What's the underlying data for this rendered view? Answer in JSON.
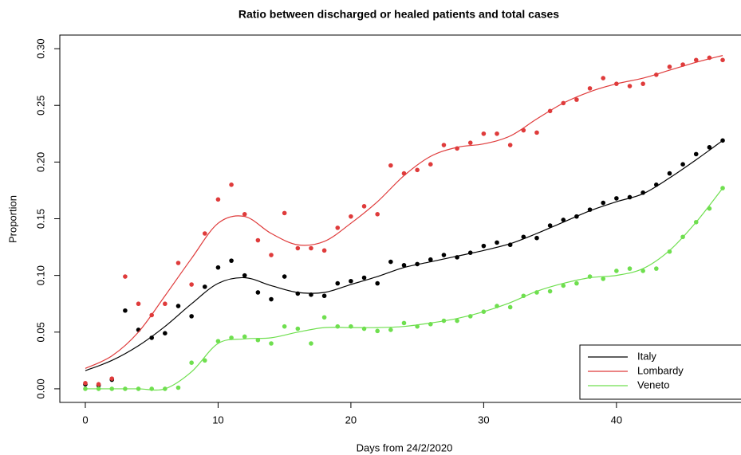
{
  "chart_data": {
    "type": "scatter",
    "title": "Ratio between discharged or healed patients and total cases",
    "x_label": "Days from 24/2/2020",
    "y_label": "Proportion",
    "x": [
      0,
      1,
      2,
      3,
      4,
      5,
      6,
      7,
      8,
      9,
      10,
      11,
      12,
      13,
      14,
      15,
      16,
      17,
      18,
      19,
      20,
      21,
      22,
      23,
      24,
      25,
      26,
      27,
      28,
      29,
      30,
      31,
      32,
      33,
      34,
      35,
      36,
      37,
      38,
      39,
      40,
      41,
      42,
      43,
      44,
      45,
      46,
      47,
      48
    ],
    "fit_x": [
      0,
      2,
      4,
      6,
      8,
      10,
      12,
      14,
      16,
      18,
      20,
      22,
      24,
      26,
      28,
      30,
      32,
      34,
      36,
      38,
      40,
      42,
      44,
      46,
      48
    ],
    "series": [
      {
        "name": "Italy",
        "color": "#000000",
        "values": [
          0.004,
          0.003,
          0.008,
          0.069,
          0.052,
          0.045,
          0.049,
          0.073,
          0.064,
          0.09,
          0.107,
          0.113,
          0.1,
          0.085,
          0.079,
          0.099,
          0.084,
          0.083,
          0.082,
          0.093,
          0.095,
          0.098,
          0.093,
          0.112,
          0.109,
          0.11,
          0.114,
          0.118,
          0.116,
          0.12,
          0.126,
          0.129,
          0.127,
          0.134,
          0.133,
          0.144,
          0.149,
          0.152,
          0.158,
          0.164,
          0.168,
          0.169,
          0.173,
          0.18,
          0.19,
          0.198,
          0.207,
          0.213,
          0.219
        ],
        "fit": [
          0.016,
          0.025,
          0.038,
          0.055,
          0.075,
          0.093,
          0.098,
          0.091,
          0.085,
          0.085,
          0.092,
          0.099,
          0.107,
          0.112,
          0.117,
          0.122,
          0.128,
          0.137,
          0.147,
          0.157,
          0.165,
          0.172,
          0.186,
          0.202,
          0.219
        ]
      },
      {
        "name": "Lombardy",
        "color": "#df3b3b",
        "values": [
          0.005,
          0.004,
          0.009,
          0.099,
          0.075,
          0.065,
          0.075,
          0.111,
          0.092,
          0.137,
          0.167,
          0.18,
          0.154,
          0.131,
          0.118,
          0.155,
          0.124,
          0.124,
          0.122,
          0.142,
          0.152,
          0.161,
          0.154,
          0.197,
          0.19,
          0.193,
          0.198,
          0.215,
          0.212,
          0.217,
          0.225,
          0.225,
          0.215,
          0.228,
          0.226,
          0.245,
          0.252,
          0.255,
          0.265,
          0.274,
          0.269,
          0.267,
          0.269,
          0.277,
          0.284,
          0.286,
          0.29,
          0.292,
          0.29
        ],
        "fit": [
          0.018,
          0.029,
          0.05,
          0.082,
          0.115,
          0.146,
          0.152,
          0.137,
          0.127,
          0.13,
          0.146,
          0.165,
          0.188,
          0.205,
          0.213,
          0.216,
          0.223,
          0.238,
          0.252,
          0.262,
          0.269,
          0.274,
          0.281,
          0.288,
          0.294
        ]
      },
      {
        "name": "Veneto",
        "color": "#6fdf4f",
        "values": [
          0,
          0,
          0,
          0,
          0,
          0,
          0,
          0.001,
          0.023,
          0.025,
          0.042,
          0.045,
          0.046,
          0.043,
          0.04,
          0.055,
          0.053,
          0.04,
          0.063,
          0.055,
          0.055,
          0.053,
          0.051,
          0.052,
          0.058,
          0.055,
          0.057,
          0.06,
          0.06,
          0.064,
          0.068,
          0.073,
          0.072,
          0.082,
          0.085,
          0.086,
          0.091,
          0.093,
          0.099,
          0.097,
          0.104,
          0.106,
          0.104,
          0.106,
          0.121,
          0.134,
          0.147,
          0.159,
          0.177
        ],
        "fit": [
          0,
          0,
          0,
          0,
          0.015,
          0.04,
          0.044,
          0.045,
          0.05,
          0.054,
          0.054,
          0.054,
          0.055,
          0.058,
          0.062,
          0.068,
          0.076,
          0.086,
          0.093,
          0.098,
          0.1,
          0.106,
          0.122,
          0.147,
          0.177
        ]
      }
    ],
    "xlim": [
      -1.92,
      49.92
    ],
    "ylim": [
      -0.012,
      0.312
    ],
    "xticks": [
      0,
      10,
      20,
      30,
      40
    ],
    "yticks": [
      {
        "value": 0,
        "label": "0.00"
      },
      {
        "value": 0.05,
        "label": "0.05"
      },
      {
        "value": 0.1,
        "label": "0.10"
      },
      {
        "value": 0.15,
        "label": "0.15"
      },
      {
        "value": 0.2,
        "label": "0.20"
      },
      {
        "value": 0.25,
        "label": "0.25"
      },
      {
        "value": 0.3,
        "label": "0.30"
      }
    ],
    "legend": "bottomright"
  }
}
